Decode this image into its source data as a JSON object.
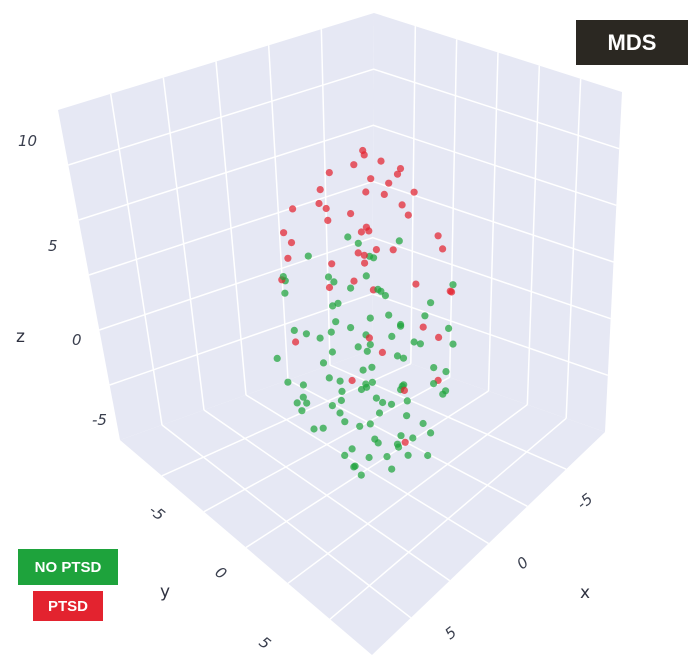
{
  "badge": {
    "label": "MDS"
  },
  "legend": [
    {
      "name": "NO PTSD",
      "color": "#1ea33c"
    },
    {
      "name": "PTSD",
      "color": "#e3232f"
    }
  ],
  "chart_data": {
    "type": "scatter3d",
    "axis_titles": {
      "x": "x",
      "y": "y",
      "z": "z"
    },
    "x_ticks": [
      "-5",
      "0",
      "5"
    ],
    "y_ticks": [
      "-5",
      "0",
      "5"
    ],
    "z_ticks": [
      "10",
      "5",
      "0",
      "-5"
    ],
    "xlim": [
      -8,
      8
    ],
    "ylim": [
      -8,
      8
    ],
    "zlim": [
      -8,
      12
    ],
    "grid": true,
    "point_color_ptsd": "#e3232f",
    "point_color_no_ptsd": "#1ea33c",
    "pane_color": "#e6e8f4",
    "series": [
      {
        "name": "NO PTSD",
        "points": [
          [
            0.0,
            -0.5,
            -6.5
          ],
          [
            0.8,
            -1.2,
            -6.8
          ],
          [
            -0.6,
            0.4,
            -6.9
          ],
          [
            1.5,
            0.2,
            -6.3
          ],
          [
            -1.3,
            -0.8,
            -6.6
          ],
          [
            0.3,
            1.1,
            -7.0
          ],
          [
            2.1,
            -0.6,
            -6.4
          ],
          [
            -2.0,
            0.9,
            -6.2
          ],
          [
            1.2,
            1.6,
            -6.7
          ],
          [
            -0.9,
            -1.7,
            -6.1
          ],
          [
            0.5,
            -2.1,
            -5.8
          ],
          [
            2.6,
            1.0,
            -5.9
          ],
          [
            -2.5,
            -0.2,
            -5.7
          ],
          [
            1.8,
            -1.9,
            -5.5
          ],
          [
            -1.7,
            1.8,
            -5.6
          ],
          [
            0.2,
            0.0,
            -5.2
          ],
          [
            3.0,
            -1.2,
            -5.0
          ],
          [
            -3.1,
            1.1,
            -4.9
          ],
          [
            1.0,
            2.5,
            -5.1
          ],
          [
            -0.4,
            -2.8,
            -4.8
          ],
          [
            2.3,
            2.2,
            -4.6
          ],
          [
            -2.4,
            -2.1,
            -4.5
          ],
          [
            0.7,
            -0.9,
            -4.3
          ],
          [
            -1.1,
            0.6,
            -4.2
          ],
          [
            3.4,
            0.4,
            -4.0
          ],
          [
            -3.5,
            -0.6,
            -3.9
          ],
          [
            1.6,
            -2.8,
            -3.8
          ],
          [
            -1.9,
            2.7,
            -3.7
          ],
          [
            0.1,
            1.9,
            -3.5
          ],
          [
            2.8,
            -2.4,
            -3.4
          ],
          [
            -2.9,
            2.3,
            -3.3
          ],
          [
            0.9,
            0.3,
            -3.1
          ],
          [
            -0.8,
            -1.1,
            -3.0
          ],
          [
            3.8,
            1.6,
            -2.8
          ],
          [
            -3.9,
            -1.5,
            -2.7
          ],
          [
            1.4,
            2.9,
            -2.6
          ],
          [
            -1.4,
            -3.0,
            -2.5
          ],
          [
            2.0,
            -0.2,
            -2.3
          ],
          [
            -2.2,
            0.1,
            -2.2
          ],
          [
            0.4,
            -1.6,
            -2.0
          ],
          [
            4.2,
            -0.8,
            -1.8
          ],
          [
            -4.1,
            0.7,
            -1.7
          ],
          [
            1.1,
            1.2,
            -1.6
          ],
          [
            -0.9,
            -0.3,
            -1.4
          ],
          [
            2.5,
            -3.2,
            -1.3
          ],
          [
            -2.6,
            3.3,
            -1.2
          ],
          [
            0.6,
            2.4,
            -1.0
          ],
          [
            -0.2,
            -2.4,
            -0.9
          ],
          [
            3.2,
            0.9,
            -0.7
          ],
          [
            -3.3,
            -1.0,
            -0.6
          ],
          [
            1.7,
            -1.4,
            -0.4
          ],
          [
            -1.6,
            1.5,
            -0.3
          ],
          [
            4.5,
            1.9,
            -0.1
          ],
          [
            -4.6,
            -2.0,
            0.0
          ],
          [
            0.8,
            0.6,
            0.2
          ],
          [
            -0.5,
            -0.7,
            0.3
          ],
          [
            2.9,
            2.6,
            0.5
          ],
          [
            -2.8,
            -2.7,
            0.6
          ],
          [
            1.3,
            -2.9,
            0.8
          ],
          [
            -1.2,
            2.8,
            0.9
          ],
          [
            3.6,
            -1.8,
            1.1
          ],
          [
            -3.7,
            1.7,
            1.2
          ],
          [
            0.3,
            1.4,
            1.4
          ],
          [
            -0.1,
            -1.3,
            1.5
          ],
          [
            2.2,
            0.0,
            1.7
          ],
          [
            -2.3,
            -0.1,
            1.8
          ],
          [
            4.0,
            0.5,
            2.0
          ],
          [
            -4.3,
            -0.4,
            2.1
          ],
          [
            1.9,
            2.0,
            2.3
          ],
          [
            -1.8,
            -2.2,
            2.4
          ],
          [
            0.5,
            -0.4,
            2.6
          ],
          [
            -0.6,
            0.5,
            2.7
          ],
          [
            3.1,
            -2.6,
            2.9
          ],
          [
            -3.0,
            2.5,
            3.0
          ],
          [
            1.0,
            3.1,
            3.2
          ],
          [
            -1.0,
            -3.1,
            3.3
          ],
          [
            2.7,
            1.3,
            3.5
          ],
          [
            -2.7,
            -1.4,
            3.6
          ],
          [
            5.0,
            -0.2,
            0.4
          ],
          [
            -5.1,
            0.3,
            0.5
          ],
          [
            0.2,
            4.2,
            -1.5
          ],
          [
            -0.3,
            -4.1,
            -1.4
          ],
          [
            4.8,
            2.8,
            -2.0
          ],
          [
            -4.9,
            -2.9,
            -2.1
          ],
          [
            1.5,
            0.8,
            4.0
          ],
          [
            -1.5,
            -0.9,
            4.1
          ],
          [
            3.3,
            3.4,
            1.0
          ],
          [
            -3.4,
            -3.5,
            1.1
          ],
          [
            0.0,
            0.0,
            -1.0
          ],
          [
            1.8,
            -0.6,
            -0.8
          ],
          [
            -1.8,
            0.7,
            -3.2
          ],
          [
            2.4,
            1.7,
            -4.0
          ],
          [
            -2.1,
            -1.7,
            -5.3
          ],
          [
            0.9,
            -3.5,
            -3.6
          ],
          [
            -0.7,
            3.6,
            -2.9
          ],
          [
            3.5,
            -0.5,
            -5.6
          ],
          [
            -3.6,
            0.6,
            -4.7
          ],
          [
            1.2,
            2.1,
            -5.9
          ],
          [
            -1.3,
            -2.3,
            -6.0
          ],
          [
            2.0,
            3.7,
            0.1
          ]
        ]
      },
      {
        "name": "PTSD",
        "points": [
          [
            0.2,
            0.4,
            11.0
          ],
          [
            -0.8,
            -0.5,
            10.2
          ],
          [
            1.1,
            1.2,
            9.8
          ],
          [
            -1.6,
            0.9,
            9.2
          ],
          [
            0.6,
            -1.4,
            9.0
          ],
          [
            2.0,
            -0.3,
            8.6
          ],
          [
            -2.1,
            -1.2,
            8.3
          ],
          [
            1.5,
            1.9,
            8.1
          ],
          [
            -0.4,
            2.2,
            7.8
          ],
          [
            0.9,
            -2.2,
            7.6
          ],
          [
            2.8,
            1.1,
            7.3
          ],
          [
            -2.9,
            0.2,
            7.1
          ],
          [
            -1.2,
            -2.6,
            6.9
          ],
          [
            3.2,
            -1.5,
            6.6
          ],
          [
            -3.3,
            1.6,
            6.4
          ],
          [
            0.1,
            0.0,
            6.2
          ],
          [
            1.9,
            2.8,
            6.0
          ],
          [
            -1.8,
            -2.9,
            5.8
          ],
          [
            3.8,
            0.6,
            5.5
          ],
          [
            -3.9,
            -0.7,
            5.3
          ],
          [
            0.7,
            3.2,
            5.1
          ],
          [
            -0.6,
            -3.3,
            4.9
          ],
          [
            2.4,
            -2.6,
            4.7
          ],
          [
            -2.5,
            2.7,
            4.5
          ],
          [
            4.4,
            -1.1,
            4.2
          ],
          [
            -4.5,
            1.0,
            4.0
          ],
          [
            1.2,
            0.8,
            3.8
          ],
          [
            -1.1,
            -0.9,
            3.6
          ],
          [
            3.0,
            2.9,
            3.4
          ],
          [
            -3.1,
            -3.0,
            3.2
          ],
          [
            5.0,
            0.3,
            2.8
          ],
          [
            -5.2,
            -0.2,
            2.5
          ],
          [
            0.4,
            -0.6,
            -1.2
          ],
          [
            -0.3,
            0.7,
            -2.5
          ],
          [
            4.6,
            2.2,
            0.8
          ],
          [
            -4.7,
            -2.3,
            0.6
          ],
          [
            1.6,
            -3.1,
            -3.8
          ],
          [
            -1.7,
            3.0,
            0.2
          ],
          [
            2.6,
            0.1,
            -4.9
          ],
          [
            0.5,
            1.6,
            8.4
          ],
          [
            -0.9,
            -1.8,
            8.8
          ],
          [
            1.3,
            -0.9,
            10.0
          ],
          [
            -1.4,
            1.3,
            7.4
          ],
          [
            2.2,
            2.4,
            7.0
          ],
          [
            -2.3,
            -2.5,
            6.7
          ],
          [
            3.5,
            -2.1,
            3.0
          ],
          [
            -3.6,
            2.0,
            2.2
          ],
          [
            0.8,
            0.2,
            5.6
          ],
          [
            -0.7,
            -0.1,
            4.4
          ],
          [
            2.9,
            -0.8,
            1.5
          ]
        ]
      }
    ]
  }
}
